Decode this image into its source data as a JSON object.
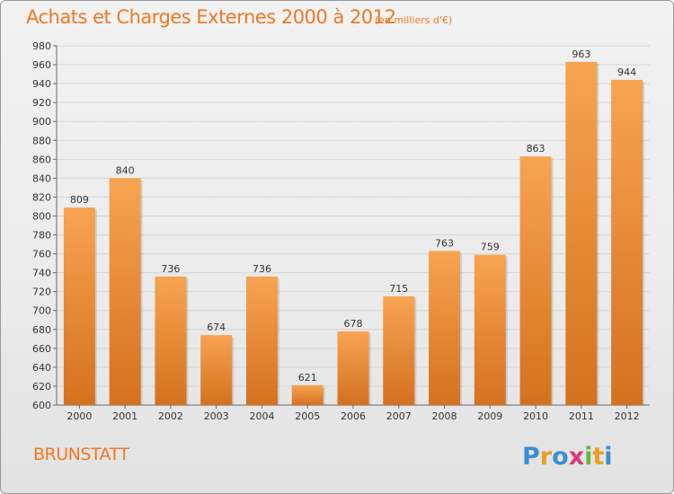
{
  "header": {
    "title": "Achats et Charges Externes 2000 à 2012",
    "subtitle": "(en milliers d'€)"
  },
  "footer": {
    "commune": "BRUNSTATT",
    "logo_text": "Proxiti"
  },
  "colors": {
    "accent": "#f07822",
    "bar_light": "#f7a451",
    "bar_dark": "#d4711f"
  },
  "chart_data": {
    "type": "bar",
    "title": "Achats et Charges Externes 2000 à 2012",
    "subtitle": "(en milliers d'€)",
    "categories": [
      "2000",
      "2001",
      "2002",
      "2003",
      "2004",
      "2005",
      "2006",
      "2007",
      "2008",
      "2009",
      "2010",
      "2011",
      "2012"
    ],
    "values": [
      809,
      840,
      736,
      674,
      736,
      621,
      678,
      715,
      763,
      759,
      863,
      963,
      944
    ],
    "ylim": [
      600,
      980
    ],
    "yticks": [
      600,
      620,
      640,
      660,
      680,
      700,
      720,
      740,
      760,
      780,
      800,
      820,
      840,
      860,
      880,
      900,
      920,
      940,
      960,
      980
    ],
    "grid": true,
    "data_labels": true
  }
}
